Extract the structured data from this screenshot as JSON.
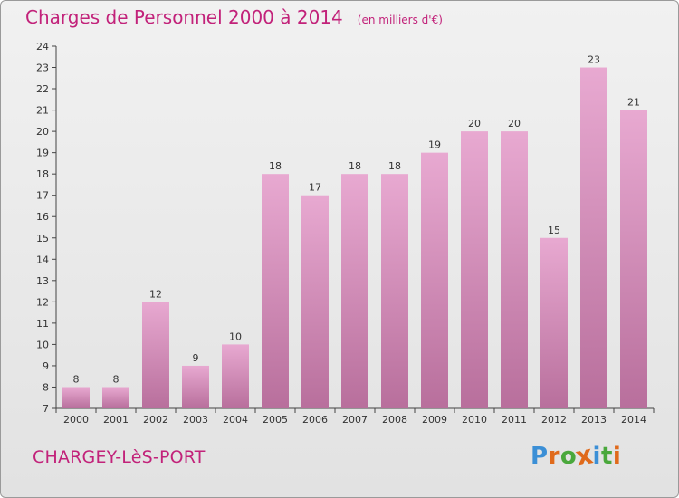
{
  "header": {
    "title": "Charges de Personnel 2000 à 2014",
    "subtitle": "(en milliers d'€)"
  },
  "footer": {
    "commune": "CHARGEY-LèS-PORT",
    "logo": "Proxiti"
  },
  "colors": {
    "title": "#c2227a",
    "bar_light": "#e8a9d1",
    "bar_dark": "#b86f9c",
    "logo_letters": [
      "#3b8fd6",
      "#e06a1b",
      "#4aa83c",
      "#e06a1b",
      "#3b8fd6",
      "#4aa83c",
      "#e06a1b"
    ]
  },
  "chart_data": {
    "type": "bar",
    "categories": [
      "2000",
      "2001",
      "2002",
      "2003",
      "2004",
      "2005",
      "2006",
      "2007",
      "2008",
      "2009",
      "2010",
      "2011",
      "2012",
      "2013",
      "2014"
    ],
    "values": [
      8,
      8,
      12,
      9,
      10,
      18,
      17,
      18,
      18,
      19,
      20,
      20,
      15,
      23,
      21
    ],
    "title": "Charges de Personnel 2000 à 2014",
    "subtitle": "(en milliers d'€)",
    "ylim": [
      7,
      24
    ],
    "yticks": [
      7,
      8,
      9,
      10,
      11,
      12,
      13,
      14,
      15,
      16,
      17,
      18,
      19,
      20,
      21,
      22,
      23,
      24
    ],
    "grid": false,
    "data_labels": true
  }
}
